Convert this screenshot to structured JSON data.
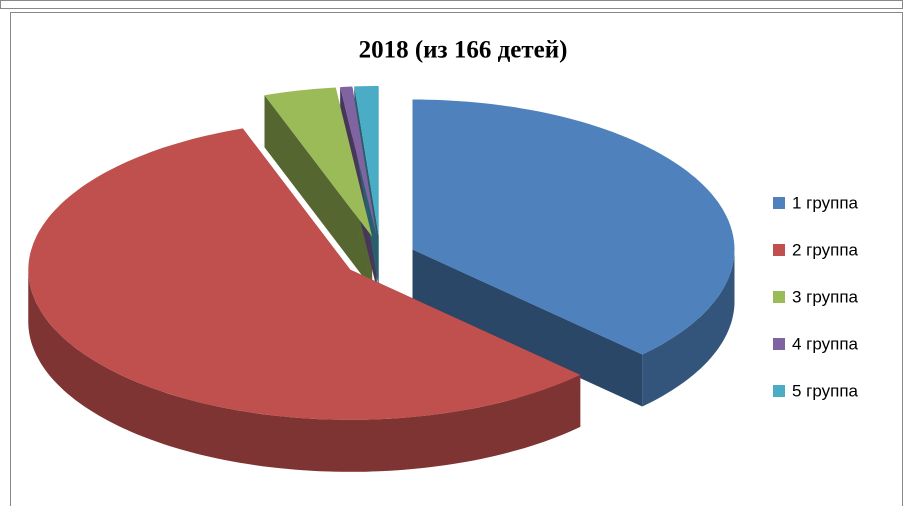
{
  "chart_data": {
    "type": "pie3d",
    "title": "2018 (из 166 детей)",
    "categories": [
      "1 группа",
      "2 группа",
      "3 группа",
      "4 группа",
      "5 группа"
    ],
    "values": [
      62,
      95,
      6,
      1,
      2
    ],
    "colors": [
      "#4f81bd",
      "#c0504d",
      "#9bbb59",
      "#8064a2",
      "#4bacc6"
    ],
    "legend": "right"
  }
}
